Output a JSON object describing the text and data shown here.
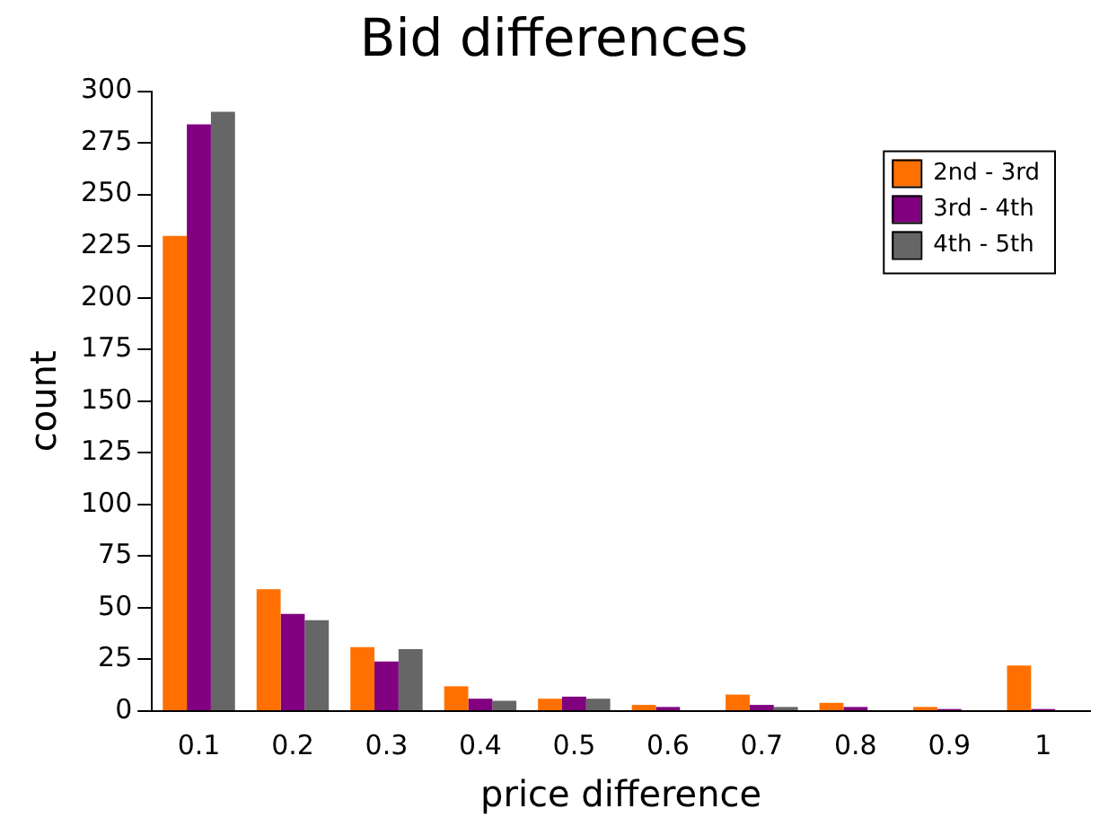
{
  "chart_data": {
    "type": "bar",
    "title": "Bid differences",
    "xlabel": "price difference",
    "ylabel": "count",
    "categories": [
      "0.1",
      "0.2",
      "0.3",
      "0.4",
      "0.5",
      "0.6",
      "0.7",
      "0.8",
      "0.9",
      "1"
    ],
    "series": [
      {
        "name": "2nd - 3rd",
        "color": "#ff7000",
        "values": [
          230,
          59,
          31,
          12,
          6,
          3,
          8,
          4,
          2,
          22
        ]
      },
      {
        "name": "3rd - 4th",
        "color": "#800080",
        "values": [
          284,
          47,
          24,
          6,
          7,
          2,
          3,
          2,
          1,
          1
        ]
      },
      {
        "name": "4th - 5th",
        "color": "#666666",
        "values": [
          290,
          44,
          30,
          5,
          6,
          0,
          2,
          0,
          0,
          0
        ]
      }
    ],
    "ylim": [
      0,
      300
    ],
    "yticks": [
      0,
      25,
      50,
      75,
      100,
      125,
      150,
      175,
      200,
      225,
      250,
      275,
      300
    ],
    "grid": false,
    "legend": "top right"
  }
}
